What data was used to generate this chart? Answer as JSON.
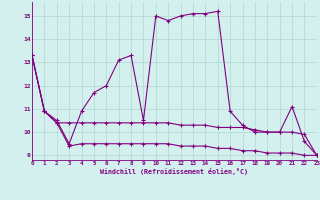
{
  "x": [
    0,
    1,
    2,
    3,
    4,
    5,
    6,
    7,
    8,
    9,
    10,
    11,
    12,
    13,
    14,
    15,
    16,
    17,
    18,
    19,
    20,
    21,
    22,
    23
  ],
  "line1": [
    13.3,
    10.9,
    10.5,
    9.5,
    10.9,
    11.7,
    12.0,
    13.1,
    13.3,
    10.5,
    15.0,
    14.8,
    15.0,
    15.1,
    15.1,
    15.2,
    10.9,
    10.3,
    10.0,
    10.0,
    10.0,
    11.1,
    9.6,
    9.0
  ],
  "line2": [
    13.3,
    10.9,
    10.4,
    10.4,
    10.4,
    10.4,
    10.4,
    10.4,
    10.4,
    10.4,
    10.4,
    10.4,
    10.3,
    10.3,
    10.3,
    10.2,
    10.2,
    10.2,
    10.1,
    10.0,
    10.0,
    10.0,
    9.9,
    9.0
  ],
  "line3": [
    13.3,
    10.9,
    10.4,
    9.4,
    9.5,
    9.5,
    9.5,
    9.5,
    9.5,
    9.5,
    9.5,
    9.5,
    9.4,
    9.4,
    9.4,
    9.3,
    9.3,
    9.2,
    9.2,
    9.1,
    9.1,
    9.1,
    9.0,
    9.0
  ],
  "line_color": "#800080",
  "bg_color": "#d4f0ee",
  "grid_color": "#b0d8d0",
  "xlim": [
    0,
    23
  ],
  "ylim": [
    8.8,
    15.6
  ],
  "yticks": [
    9,
    10,
    11,
    12,
    13,
    14,
    15
  ],
  "xticks": [
    0,
    1,
    2,
    3,
    4,
    5,
    6,
    7,
    8,
    9,
    10,
    11,
    12,
    13,
    14,
    15,
    16,
    17,
    18,
    19,
    20,
    21,
    22,
    23
  ],
  "xlabel": "Windchill (Refroidissement éolien,°C)"
}
